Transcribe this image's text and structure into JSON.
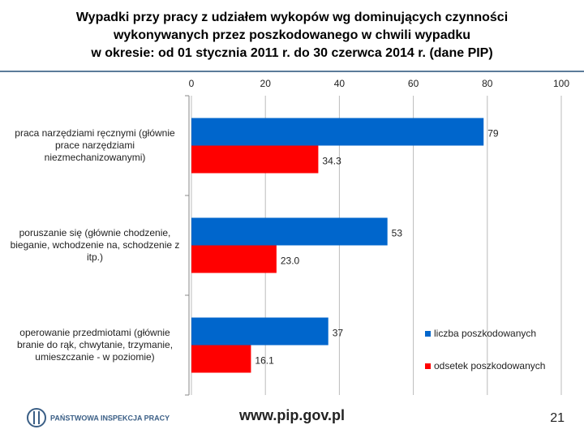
{
  "title_lines": [
    "Wypadki przy pracy z udziałem wykopów wg dominujących czynności",
    "wykonywanych przez poszkodowanego w chwili wypadku",
    "w okresie: od 01 stycznia 2011 r. do 30 czerwca 2014 r. (dane PIP)"
  ],
  "chart_data": {
    "type": "bar",
    "orientation": "horizontal",
    "categories": [
      "praca narzędziami ręcznymi (głównie prace narzędziami niezmechanizowanymi)",
      "poruszanie się (głównie chodzenie, bieganie, wchodzenie na, schodzenie z itp.)",
      "operowanie przedmiotami (głównie branie do rąk, chwytanie, trzymanie, umieszczanie - w poziomie)"
    ],
    "series": [
      {
        "name": "liczba poszkodowanych",
        "color": "#0066cc",
        "values": [
          79,
          53,
          37
        ]
      },
      {
        "name": "odsetek poszkodowanych",
        "color": "#ff0000",
        "values": [
          34.3,
          23.0,
          16.1
        ],
        "value_labels": [
          "34.3",
          "23.0",
          "16.1"
        ]
      }
    ],
    "xlim": [
      0,
      100
    ],
    "xticks": [
      0,
      20,
      40,
      60,
      80,
      100
    ],
    "grid": true,
    "legend": "right"
  },
  "footer": {
    "logo_text": "PAŃSTWOWA INSPEKCJA PRACY",
    "url": "www.pip.gov.pl",
    "page_number": 21
  }
}
